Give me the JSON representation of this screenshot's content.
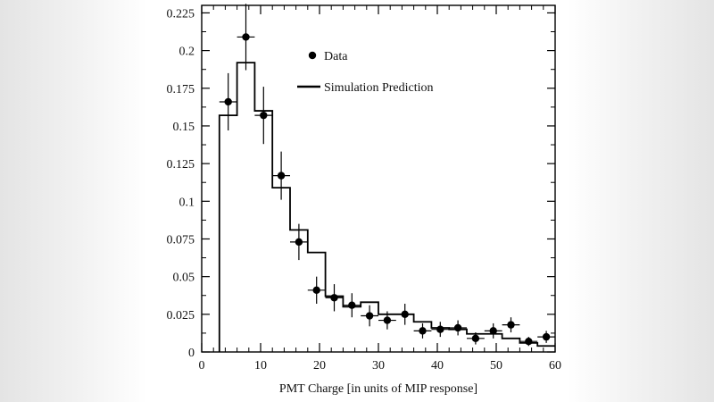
{
  "chart_data": {
    "type": "histogram",
    "title": "",
    "xlabel": "PMT Charge [in units of MIP response]",
    "ylabel": "",
    "xlim": [
      0,
      60
    ],
    "ylim": [
      0,
      0.23
    ],
    "x_ticks": [
      0,
      10,
      20,
      30,
      40,
      50,
      60
    ],
    "x_tick_labels": [
      "0",
      "10",
      "20",
      "30",
      "40",
      "50",
      "60"
    ],
    "y_ticks": [
      0,
      0.025,
      0.05,
      0.075,
      0.1,
      0.125,
      0.15,
      0.175,
      0.2,
      0.225
    ],
    "y_tick_labels": [
      "0",
      "0.025",
      "0.05",
      "0.075",
      "0.1",
      "0.125",
      "0.15",
      "0.175",
      "0.2",
      "0.225"
    ],
    "grid": false,
    "legend": {
      "position": "top-center",
      "entries": [
        {
          "label": "Data",
          "style": "marker"
        },
        {
          "label": "Simulation Prediction",
          "style": "line"
        }
      ]
    },
    "series": [
      {
        "name": "Simulation Prediction",
        "style": "step",
        "bin_edges": [
          3,
          6,
          9,
          12,
          15,
          18,
          21,
          24,
          27,
          30,
          33,
          36,
          39,
          42,
          45,
          48,
          51,
          54,
          57,
          60
        ],
        "values": [
          0.157,
          0.192,
          0.16,
          0.109,
          0.081,
          0.066,
          0.037,
          0.03,
          0.033,
          0.025,
          0.025,
          0.02,
          0.016,
          0.015,
          0.012,
          0.012,
          0.009,
          0.006,
          0.004
        ]
      },
      {
        "name": "Data",
        "style": "points",
        "points": [
          {
            "x": 4.5,
            "y": 0.166,
            "xerr": 1.5,
            "yerr": 0.019
          },
          {
            "x": 7.5,
            "y": 0.209,
            "xerr": 1.5,
            "yerr": 0.022
          },
          {
            "x": 10.5,
            "y": 0.157,
            "xerr": 1.5,
            "yerr": 0.019
          },
          {
            "x": 13.5,
            "y": 0.117,
            "xerr": 1.5,
            "yerr": 0.016
          },
          {
            "x": 16.5,
            "y": 0.073,
            "xerr": 1.5,
            "yerr": 0.012
          },
          {
            "x": 19.5,
            "y": 0.041,
            "xerr": 1.5,
            "yerr": 0.009
          },
          {
            "x": 22.5,
            "y": 0.036,
            "xerr": 1.5,
            "yerr": 0.009
          },
          {
            "x": 25.5,
            "y": 0.031,
            "xerr": 1.5,
            "yerr": 0.008
          },
          {
            "x": 28.5,
            "y": 0.024,
            "xerr": 1.5,
            "yerr": 0.007
          },
          {
            "x": 31.5,
            "y": 0.021,
            "xerr": 1.5,
            "yerr": 0.006
          },
          {
            "x": 34.5,
            "y": 0.025,
            "xerr": 1.5,
            "yerr": 0.007
          },
          {
            "x": 37.5,
            "y": 0.014,
            "xerr": 1.5,
            "yerr": 0.005
          },
          {
            "x": 40.5,
            "y": 0.015,
            "xerr": 1.5,
            "yerr": 0.005
          },
          {
            "x": 43.5,
            "y": 0.016,
            "xerr": 1.5,
            "yerr": 0.005
          },
          {
            "x": 46.5,
            "y": 0.009,
            "xerr": 1.5,
            "yerr": 0.004
          },
          {
            "x": 49.5,
            "y": 0.014,
            "xerr": 1.5,
            "yerr": 0.005
          },
          {
            "x": 52.5,
            "y": 0.018,
            "xerr": 1.5,
            "yerr": 0.005
          },
          {
            "x": 55.5,
            "y": 0.007,
            "xerr": 1.5,
            "yerr": 0.003
          },
          {
            "x": 58.5,
            "y": 0.01,
            "xerr": 1.5,
            "yerr": 0.004
          }
        ]
      }
    ]
  }
}
